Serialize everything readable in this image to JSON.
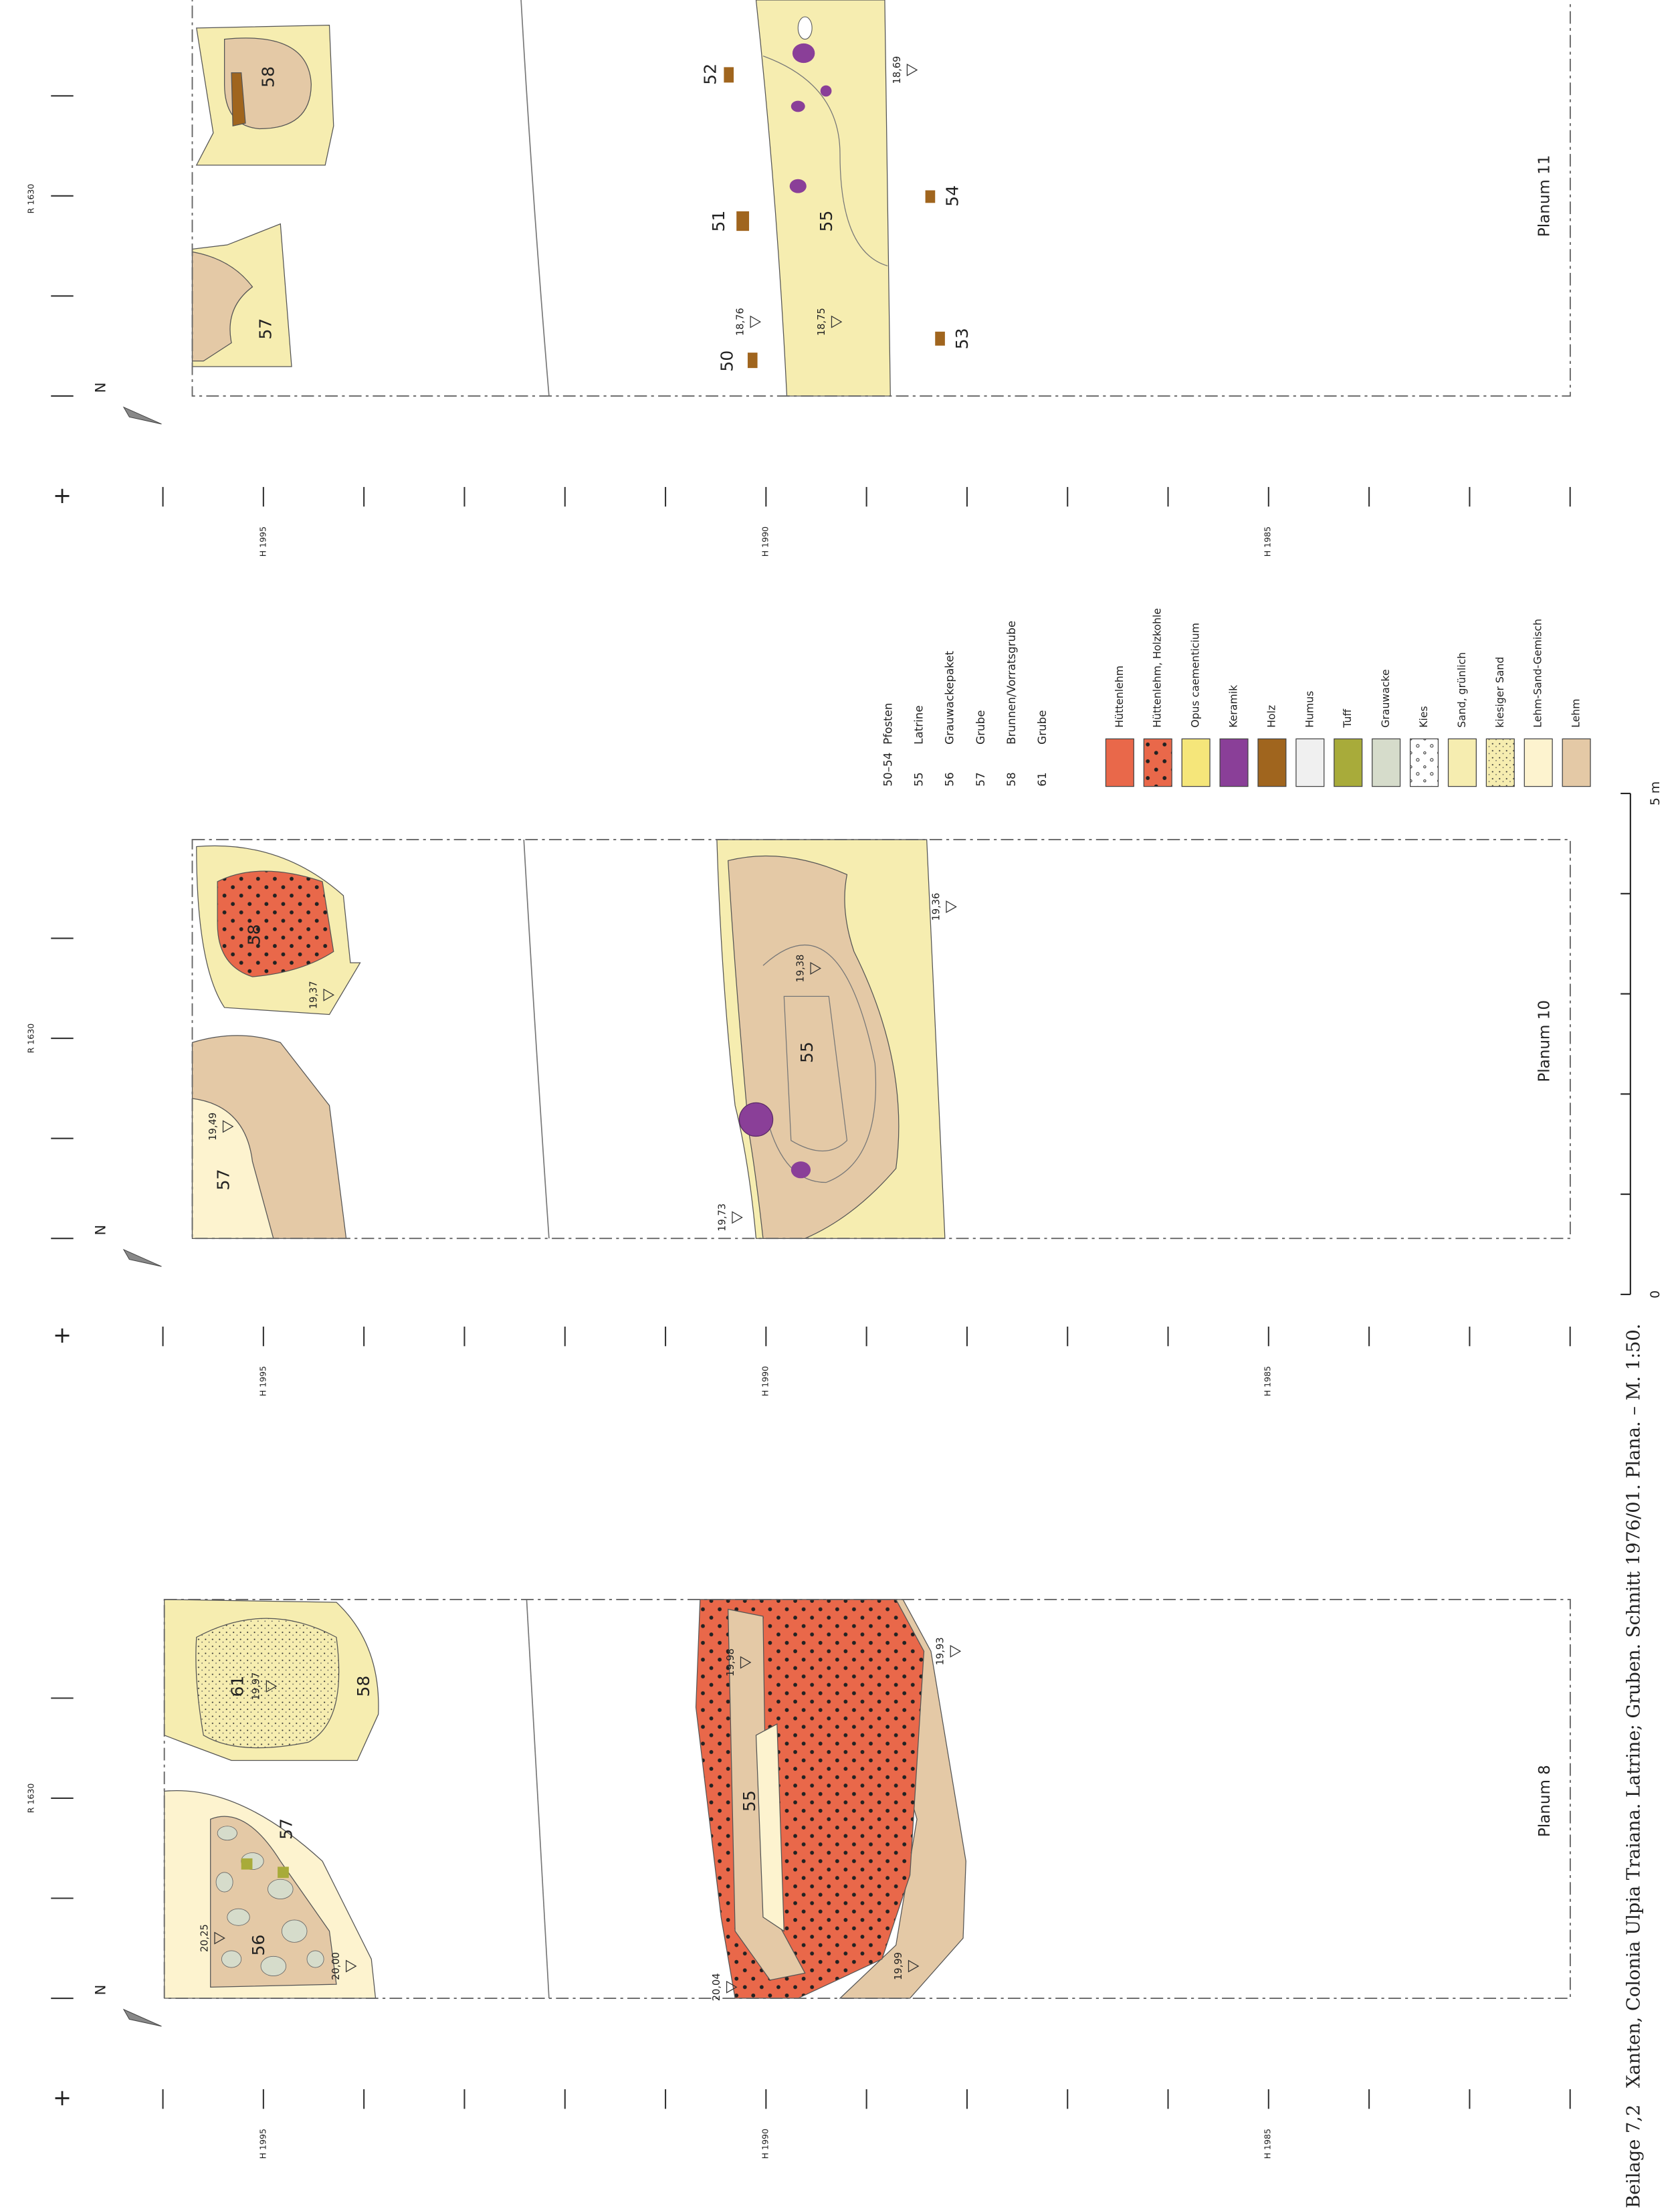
{
  "caption": {
    "label": "Beilage 7,2",
    "text": "Xanten, Colonia Ulpia Traiana. Latrine; Gruben. Schnitt 1976/01. Plana. – M. 1:50."
  },
  "panels": [
    {
      "title": "Planum 11",
      "north": "N",
      "r_label": "R 1630",
      "h_labels": [
        "H 1995",
        "H 1990",
        "H 1985"
      ],
      "labels": [
        "58",
        "57",
        "55",
        "52",
        "51",
        "50",
        "54",
        "53"
      ],
      "elevations": [
        "18,69",
        "18,76",
        "18,75"
      ]
    },
    {
      "title": "Planum 10",
      "north": "N",
      "r_label": "R 1630",
      "h_labels": [
        "H 1995",
        "H 1990",
        "H 1985"
      ],
      "labels": [
        "58",
        "57",
        "55"
      ],
      "elevations": [
        "19,37",
        "19,49",
        "19,38",
        "19,36",
        "19,73"
      ]
    },
    {
      "title": "Planum 8",
      "north": "N",
      "r_label": "R 1630",
      "h_labels": [
        "H 1995",
        "H 1990",
        "H 1985"
      ],
      "labels": [
        "61",
        "58",
        "57",
        "56",
        "55"
      ],
      "elevations": [
        "19,97",
        "20,25",
        "20,00",
        "19,98",
        "19,93",
        "19,99",
        "20,04"
      ]
    }
  ],
  "legend": {
    "features": [
      {
        "number": "50–54",
        "name": "Pfosten"
      },
      {
        "number": "55",
        "name": "Latrine"
      },
      {
        "number": "56",
        "name": "Grauwackepaket"
      },
      {
        "number": "57",
        "name": "Grube"
      },
      {
        "number": "58",
        "name": "Brunnen/Vorratsgrube"
      },
      {
        "number": "61",
        "name": "Grube"
      }
    ],
    "materials": [
      {
        "name": "Hüttenlehm",
        "color": "#e9684a"
      },
      {
        "name": "Hüttenlehm, Holzkohle",
        "color": "#e9684a"
      },
      {
        "name": "Opus caementicium",
        "color": "#f5e67a"
      },
      {
        "name": "Keramik",
        "color": "#8a3f98"
      },
      {
        "name": "Holz",
        "color": "#a0651e"
      },
      {
        "name": "Humus",
        "color": "#f0f0f0"
      },
      {
        "name": "Tuff",
        "color": "#a8ab3a"
      },
      {
        "name": "Grauwacke",
        "color": "#d6dccb"
      },
      {
        "name": "Kies",
        "color": "#ffffff"
      },
      {
        "name": "Sand, grünlich",
        "color": "#f6edb0"
      },
      {
        "name": "kiesiger Sand",
        "color": "#f6edb0"
      },
      {
        "name": "Lehm-Sand-Gemisch",
        "color": "#fdf3cf"
      },
      {
        "name": "Lehm",
        "color": "#e4c9a6"
      }
    ]
  },
  "scale": {
    "start": "0",
    "end": "5 m"
  }
}
